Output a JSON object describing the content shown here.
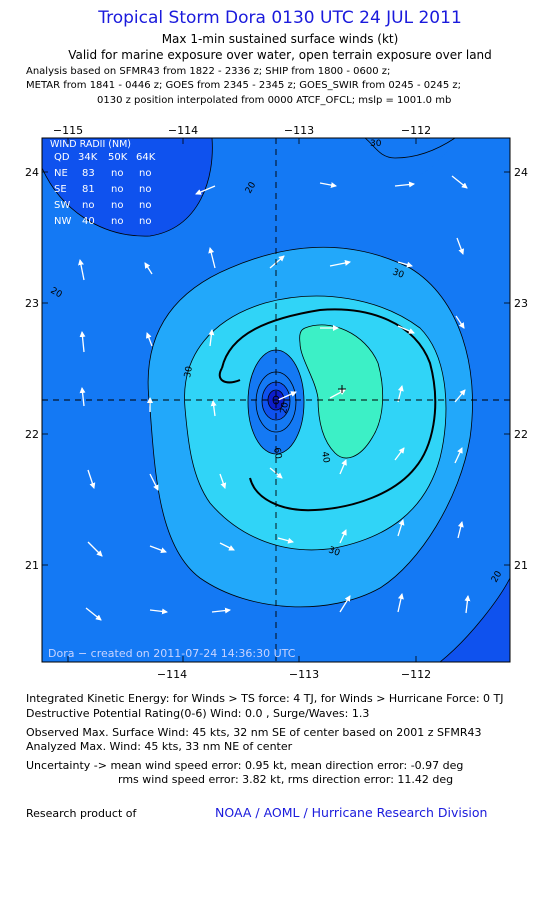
{
  "title": "Tropical Storm Dora 0130 UTC 24 JUL 2011",
  "subtitle": "Max 1-min sustained surface winds (kt)",
  "validity": "Valid for marine exposure over water, open terrain exposure over land",
  "analysis_lines": [
    "Analysis based on SFMR43 from 1822 - 2336 z; SHIP from 1800 - 0600 z;",
    "METAR from 1841 - 0446 z; GOES from 2345 - 2345 z; GOES_SWIR from 0245 - 0245 z;",
    "0130 z position interpolated from 0000 ATCF_OFCL; mslp = 1001.0 mb"
  ],
  "map": {
    "lon_ticks": [
      "−115",
      "−114",
      "−113",
      "−112"
    ],
    "lat_ticks": [
      "24",
      "23",
      "22",
      "21"
    ],
    "contour_labels": [
      "20",
      "30",
      "30",
      "30",
      "40",
      "60",
      "20",
      "20",
      "20",
      "30"
    ],
    "credit": "Dora − created on 2011-07-24 14:36:30 UTC",
    "colors": {
      "lt20": "#0f52ee",
      "20_30": "#1479f4",
      "30_40": "#22a8fa",
      "40_50": "#30d4f7",
      "50_60": "#3cf0c6",
      "core_low": "#0c1ecc"
    }
  },
  "wind_radii": {
    "title": "WIND RADII (NM)",
    "header": [
      "QD",
      "34K",
      "50K",
      "64K"
    ],
    "rows": [
      [
        "NE",
        "83",
        "no",
        "no"
      ],
      [
        "SE",
        "81",
        "no",
        "no"
      ],
      [
        "SW",
        "no",
        "no",
        "no"
      ],
      [
        "NW",
        "40",
        "no",
        "no"
      ]
    ]
  },
  "ike_line": "Integrated Kinetic Energy:  for Winds > TS force: 4 TJ,  for Winds > Hurricane Force: 0 TJ",
  "dpr_line": "Destructive Potential Rating(0-6)   Wind: 0.0 , Surge/Waves: 1.3",
  "observed_line": "Observed Max. Surface Wind: 45 kts, 32 nm SE of center based on 2001 z SFMR43",
  "analyzed_line": "Analyzed Max. Wind: 45 kts, 33 nm NE of center",
  "uncertainty_line1": "Uncertainty -> mean wind speed error: 0.95 kt,   mean direction error:  -0.97 deg",
  "uncertainty_line2": "rms wind speed error: 3.82 kt,   rms direction error: 11.42 deg",
  "research_label": "Research product of",
  "org": "NOAA / AOML / Hurricane Research Division"
}
